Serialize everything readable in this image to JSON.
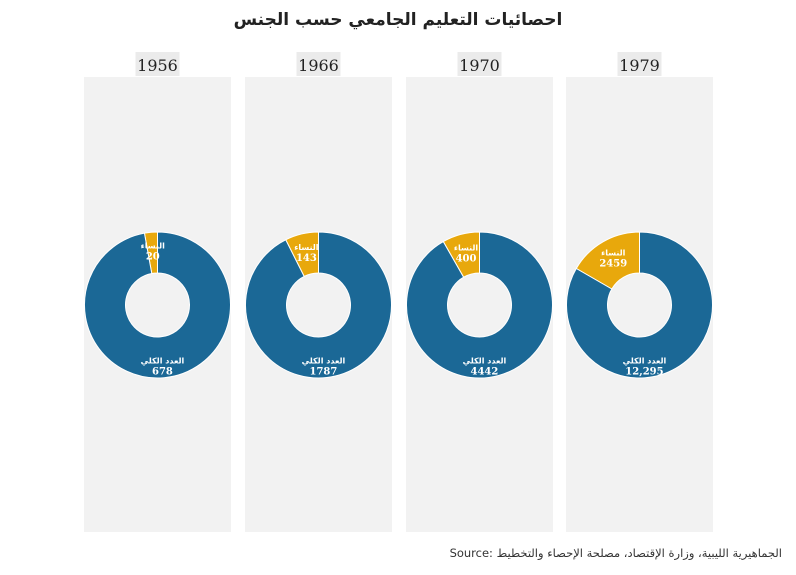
{
  "title": "احصائيات التعليم الجامعي حسب الجنس",
  "source": "Source: الجماهيرية الليبية، وزارة الإقتصاد، مصلحة الإحصاء والتخطيط",
  "colors": {
    "total": "#1b6896",
    "women": "#e8a80c",
    "panel": "#f2f2f2",
    "year_label_bg": "#ebebeb",
    "slice_text": "#ffffff"
  },
  "chart_data": [
    {
      "type": "pie",
      "title": "1956",
      "slices": [
        {
          "label": "العدد الكلي",
          "value_label": "678",
          "value": 678,
          "color_key": "total"
        },
        {
          "label": "النساء",
          "value_label": "20",
          "value": 20,
          "color_key": "women"
        }
      ]
    },
    {
      "type": "pie",
      "title": "1966",
      "slices": [
        {
          "label": "العدد الكلي",
          "value_label": "1787",
          "value": 1787,
          "color_key": "total"
        },
        {
          "label": "النساء",
          "value_label": "143",
          "value": 143,
          "color_key": "women"
        }
      ]
    },
    {
      "type": "pie",
      "title": "1970",
      "slices": [
        {
          "label": "العدد الكلي",
          "value_label": "4442",
          "value": 4442,
          "color_key": "total"
        },
        {
          "label": "النساء",
          "value_label": "400",
          "value": 400,
          "color_key": "women"
        }
      ]
    },
    {
      "type": "pie",
      "title": "1979",
      "slices": [
        {
          "label": "العدد الكلي",
          "value_label": "12,295",
          "value": 12295,
          "color_key": "total"
        },
        {
          "label": "النساء",
          "value_label": "2459",
          "value": 2459,
          "color_key": "women"
        }
      ]
    }
  ]
}
